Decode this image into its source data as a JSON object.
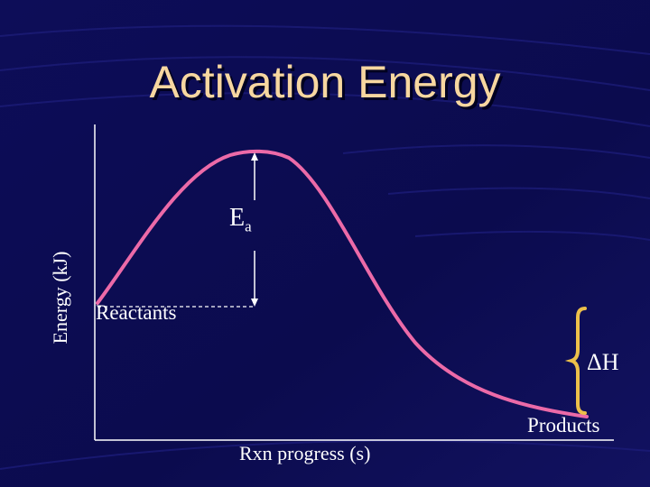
{
  "title": "Activation Energy",
  "axis": {
    "ylabel": "Energy (kJ)",
    "xlabel": "Rxn progress (s)"
  },
  "labels": {
    "reactants": "Reactants",
    "products": "Products",
    "ea_main": "E",
    "ea_sub": "a",
    "delta_h": "ΔH"
  },
  "colors": {
    "background": "#0b0b52",
    "curve": "#ec6aa8",
    "brace": "#ecc04a",
    "title": "#f7d7a0",
    "text": "#ffffff"
  }
}
